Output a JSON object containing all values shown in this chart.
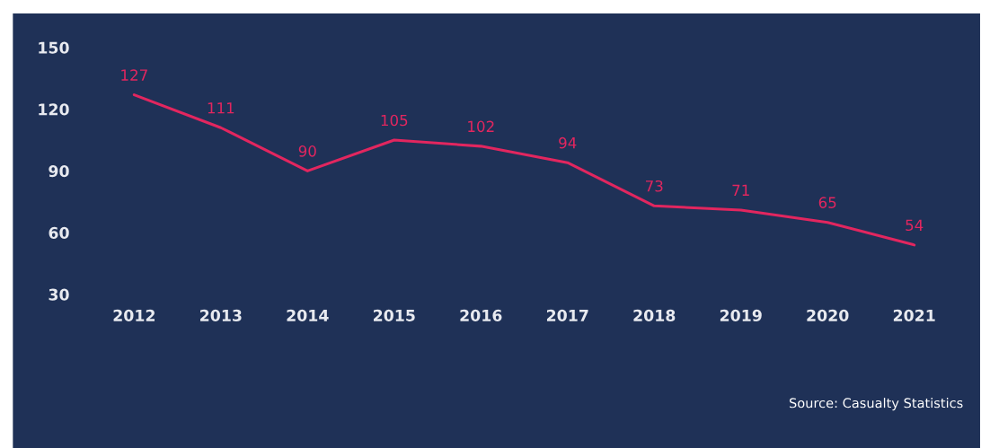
{
  "chart_data": {
    "type": "line",
    "categories": [
      "2012",
      "2013",
      "2014",
      "2015",
      "2016",
      "2017",
      "2018",
      "2019",
      "2020",
      "2021"
    ],
    "series": [
      {
        "color": "#e2265f",
        "values": [
          127,
          111,
          90,
          105,
          102,
          94,
          73,
          71,
          65,
          54
        ]
      }
    ],
    "ylim": [
      30,
      150
    ],
    "yticks": [
      30,
      60,
      90,
      120,
      150
    ],
    "data_labels": true,
    "grid": false,
    "legend": false,
    "marker": "none",
    "line_style": "solid",
    "annotations": [
      "Source: Casualty Statistics"
    ]
  }
}
